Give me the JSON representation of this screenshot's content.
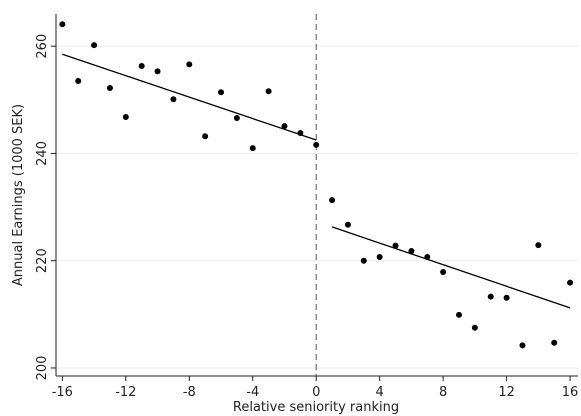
{
  "chart_data": {
    "type": "scatter",
    "x_label": "Relative seniority ranking",
    "y_label": "Annual Earnings  (1000 SEK)",
    "x": [
      -16,
      -15,
      -14,
      -13,
      -12,
      -11,
      -10,
      -9,
      -8,
      -7,
      -6,
      -5,
      -4,
      -3,
      -2,
      -1,
      0,
      1,
      2,
      3,
      4,
      5,
      6,
      7,
      8,
      9,
      10,
      11,
      12,
      13,
      14,
      15,
      16
    ],
    "values": [
      264.1,
      253.5,
      260.2,
      252.2,
      246.8,
      256.3,
      255.3,
      250.1,
      256.6,
      243.2,
      251.4,
      246.6,
      241.0,
      251.6,
      245.1,
      243.8,
      241.6,
      231.3,
      226.7,
      220.0,
      220.7,
      222.8,
      221.8,
      220.7,
      217.9,
      209.9,
      207.5,
      213.3,
      213.1,
      204.2,
      222.9,
      204.7,
      215.9
    ],
    "color": "#000000",
    "fit_lines": [
      {
        "x": [
          -16,
          0
        ],
        "values": [
          258.5,
          242.5
        ],
        "color": "#000000"
      },
      {
        "x": [
          1,
          16
        ],
        "values": [
          226.3,
          211.2
        ],
        "color": "#000000"
      }
    ],
    "vline": 0,
    "xlim": [
      -16.4,
      16.5
    ],
    "ylim": [
      198.5,
      266
    ],
    "xticks": [
      -16,
      -12,
      -8,
      -4,
      0,
      4,
      8,
      12,
      16
    ],
    "yticks": [
      200,
      220,
      240,
      260
    ],
    "grid": true
  }
}
